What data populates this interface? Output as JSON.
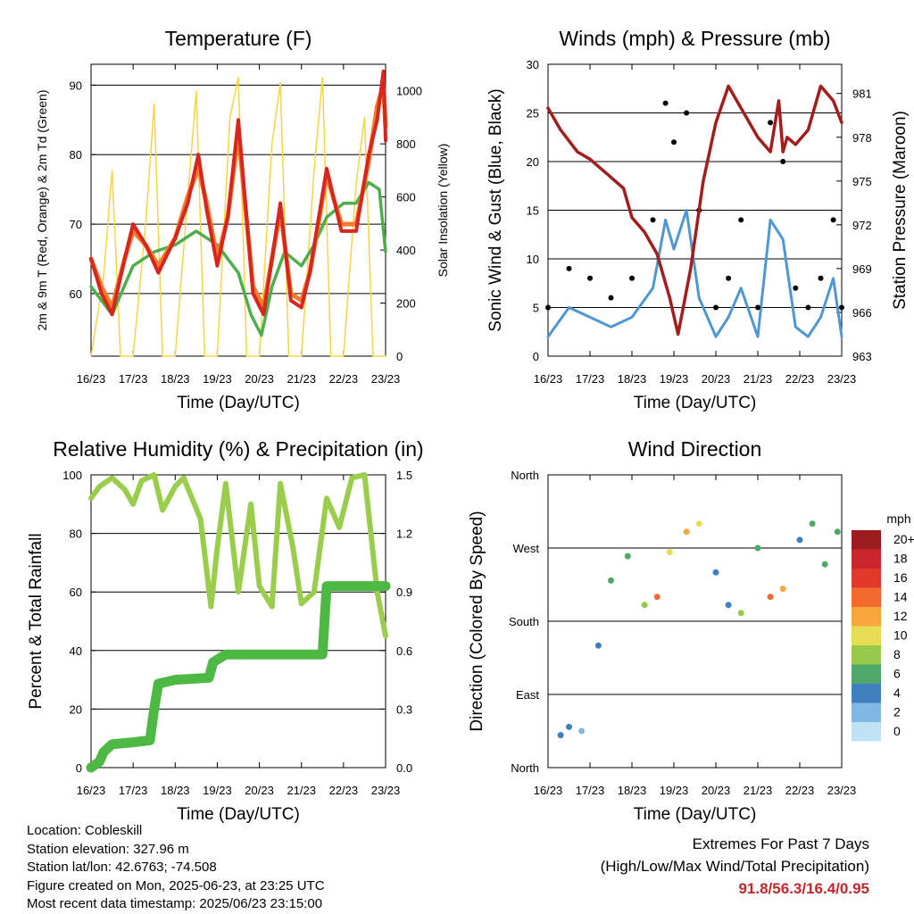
{
  "chart_data": [
    {
      "type": "line",
      "title": "Temperature (F)",
      "xlabel": "Time (Day/UTC)",
      "ylabel": "2m & 9m T (Red, Orange) & 2m Td (Green)",
      "ylabel_right": "Solar Insolation (Yellow)",
      "x_ticks": [
        "16/23",
        "17/23",
        "18/23",
        "19/23",
        "20/23",
        "21/23",
        "22/23",
        "23/23"
      ],
      "ylim": [
        51,
        93
      ],
      "y_ticks": [
        60,
        70,
        80,
        90
      ],
      "ylim_right": [
        0,
        1100
      ],
      "y_ticks_right": [
        0,
        200,
        400,
        600,
        800,
        1000
      ],
      "grid": "horizontal",
      "colors": {
        "temp_2m": "#d7261e",
        "temp_9m": "#f47b2a",
        "dewpoint_2m": "#4daf4a",
        "solar": "#f5d547"
      },
      "series": [
        {
          "key": "temp_2m",
          "x": [
            0,
            0.25,
            0.5,
            0.8,
            1,
            1.3,
            1.6,
            2,
            2.3,
            2.55,
            2.75,
            3,
            3.25,
            3.5,
            3.85,
            4.1,
            4.5,
            4.75,
            5,
            5.2,
            5.6,
            5.95,
            6.3,
            6.6,
            6.8,
            6.95,
            7
          ],
          "y": [
            65,
            60,
            57,
            65,
            70,
            67,
            63,
            68,
            73,
            80,
            72,
            64,
            71,
            85,
            60,
            57,
            73,
            59,
            58,
            63,
            78,
            69,
            69,
            80,
            85,
            92,
            82
          ]
        },
        {
          "key": "temp_9m",
          "x": [
            0,
            0.25,
            0.5,
            0.8,
            1,
            1.3,
            1.6,
            2,
            2.3,
            2.55,
            2.75,
            3,
            3.25,
            3.5,
            3.85,
            4.1,
            4.5,
            4.75,
            5,
            5.2,
            5.6,
            5.95,
            6.3,
            6.6,
            6.8,
            6.95,
            7
          ],
          "y": [
            65,
            61,
            58,
            65,
            69,
            67,
            64,
            68,
            74,
            78,
            73,
            65,
            71,
            83,
            61,
            58,
            72,
            60,
            59,
            63,
            77,
            70,
            70,
            79,
            87,
            90,
            84
          ]
        },
        {
          "key": "dewpoint_2m",
          "x": [
            0,
            0.5,
            1,
            1.5,
            2,
            2.5,
            3,
            3.5,
            3.8,
            4.05,
            4.3,
            4.6,
            5,
            5.3,
            5.6,
            6,
            6.3,
            6.6,
            6.85,
            7
          ],
          "y": [
            61,
            57,
            64,
            66,
            67,
            69,
            67,
            63,
            57,
            54,
            61,
            66,
            64,
            67,
            71,
            73,
            73,
            76,
            75,
            66
          ]
        },
        {
          "key": "solar",
          "x": [
            0,
            0.3,
            0.5,
            0.7,
            1,
            1.3,
            1.5,
            1.7,
            2,
            2.3,
            2.5,
            2.7,
            3,
            3.3,
            3.5,
            3.7,
            4,
            4.3,
            4.5,
            4.7,
            5,
            5.3,
            5.5,
            5.7,
            6,
            6.3,
            6.5,
            6.7,
            7
          ],
          "y": [
            0,
            300,
            700,
            0,
            0,
            500,
            950,
            0,
            0,
            600,
            1000,
            0,
            0,
            900,
            1050,
            0,
            0,
            800,
            1030,
            0,
            0,
            700,
            1050,
            0,
            0,
            650,
            900,
            0,
            0
          ]
        }
      ]
    },
    {
      "type": "line",
      "title": "Winds (mph) & Pressure (mb)",
      "xlabel": "Time (Day/UTC)",
      "ylabel": "Sonic Wind & Gust (Blue, Black)",
      "ylabel_right": "Station Pressure (Maroon)",
      "x_ticks": [
        "16/23",
        "17/23",
        "18/23",
        "19/23",
        "20/23",
        "21/23",
        "22/23",
        "23/23"
      ],
      "ylim": [
        0,
        30
      ],
      "y_ticks": [
        0,
        5,
        10,
        15,
        20,
        25,
        30
      ],
      "ylim_right": [
        963,
        983
      ],
      "y_ticks_right": [
        963,
        966,
        969,
        972,
        975,
        978,
        981
      ],
      "grid": "horizontal",
      "colors": {
        "wind": "#4f97d3",
        "gust": "#000000",
        "pressure": "#a31d1d"
      },
      "series": [
        {
          "key": "wind",
          "x": [
            0,
            0.5,
            1,
            1.5,
            2,
            2.5,
            2.8,
            3,
            3.3,
            3.6,
            4,
            4.3,
            4.6,
            5,
            5.3,
            5.6,
            5.9,
            6.2,
            6.5,
            6.8,
            7
          ],
          "y": [
            2,
            5,
            4,
            3,
            4,
            7,
            14,
            11,
            15,
            6,
            2,
            4,
            7,
            2,
            14,
            12,
            3,
            2,
            4,
            8,
            2
          ]
        },
        {
          "key": "gust",
          "x": [
            0,
            0.5,
            1,
            1.5,
            2,
            2.5,
            2.8,
            3,
            3.3,
            3.6,
            4,
            4.3,
            4.6,
            5,
            5.3,
            5.6,
            5.9,
            6.2,
            6.5,
            6.8,
            7
          ],
          "y": [
            5,
            9,
            8,
            6,
            8,
            14,
            26,
            22,
            25,
            15,
            5,
            8,
            14,
            5,
            24,
            20,
            7,
            5,
            8,
            14,
            5
          ]
        },
        {
          "key": "pressure",
          "x": [
            0,
            0.3,
            0.7,
            1,
            1.4,
            1.8,
            2,
            2.3,
            2.6,
            2.9,
            3.1,
            3.4,
            3.7,
            4,
            4.3,
            4.6,
            4.8,
            5,
            5.3,
            5.5,
            5.6,
            5.7,
            5.9,
            6.2,
            6.5,
            6.8,
            7
          ],
          "y": [
            980,
            978.5,
            977,
            976.5,
            975.5,
            974.5,
            972.5,
            971.5,
            970,
            967,
            964.5,
            969,
            975,
            979,
            981.5,
            980,
            979,
            978,
            977,
            980.5,
            977,
            978,
            977.5,
            978.5,
            981.5,
            980.5,
            979
          ]
        }
      ]
    },
    {
      "type": "line",
      "title": "Relative Humidity (%) & Precipitation (in)",
      "xlabel": "Time (Day/UTC)",
      "ylabel": "Percent & Total Rainfall",
      "x_ticks": [
        "16/23",
        "17/23",
        "18/23",
        "19/23",
        "20/23",
        "21/23",
        "22/23",
        "23/23"
      ],
      "ylim": [
        0,
        100
      ],
      "y_ticks": [
        0,
        20,
        40,
        60,
        80,
        100
      ],
      "ylim_right": [
        0,
        1.5
      ],
      "y_ticks_right": [
        "0.0",
        "0.3",
        "0.6",
        "0.9",
        "1.2",
        "1.5"
      ],
      "grid": "horizontal",
      "colors": {
        "rh": "#9acd4c",
        "precip": "#4db843"
      },
      "series": [
        {
          "key": "rh",
          "x": [
            0,
            0.2,
            0.5,
            0.8,
            1,
            1.2,
            1.5,
            1.7,
            2,
            2.2,
            2.6,
            2.85,
            3,
            3.2,
            3.5,
            3.8,
            4,
            4.3,
            4.5,
            4.8,
            5,
            5.3,
            5.6,
            5.9,
            6.2,
            6.5,
            6.8,
            7
          ],
          "y": [
            92,
            96,
            99,
            95,
            90,
            98,
            100,
            88,
            96,
            99,
            85,
            55,
            75,
            97,
            60,
            90,
            62,
            55,
            97,
            75,
            56,
            60,
            92,
            82,
            99,
            100,
            60,
            45
          ]
        },
        {
          "key": "precip",
          "x": [
            0,
            0.2,
            0.3,
            0.5,
            1,
            1.4,
            1.5,
            1.6,
            2,
            2.8,
            2.9,
            3.2,
            5.5,
            5.6,
            7
          ],
          "y": [
            0,
            0.03,
            0.08,
            0.12,
            0.13,
            0.14,
            0.3,
            0.43,
            0.45,
            0.46,
            0.54,
            0.58,
            0.58,
            0.93,
            0.93
          ]
        }
      ]
    },
    {
      "type": "scatter",
      "title": "Wind Direction",
      "xlabel": "Time (Day/UTC)",
      "ylabel": "Direction (Colored By Speed)",
      "x_ticks": [
        "16/23",
        "17/23",
        "18/23",
        "19/23",
        "20/23",
        "21/23",
        "22/23",
        "23/23"
      ],
      "y_ticks": [
        "North",
        "East",
        "South",
        "West",
        "North"
      ],
      "ylim": [
        0,
        360
      ],
      "grid": "horizontal",
      "legend_title": "mph",
      "legend_labels": [
        "20+",
        "18",
        "16",
        "14",
        "12",
        "10",
        "8",
        "6",
        "4",
        "2",
        "0"
      ],
      "legend_colors": [
        "#9b1b1e",
        "#c8262a",
        "#e0392b",
        "#f26a2c",
        "#f8a53e",
        "#e6dd55",
        "#98c94b",
        "#4ea868",
        "#3e7fc0",
        "#7fb8e3",
        "#bfe2f5"
      ],
      "series": [
        {
          "name": "",
          "x": [
            0.3,
            0.5,
            0.8,
            1.2,
            1.5,
            1.9,
            2.3,
            2.6,
            2.9,
            3.3,
            3.6,
            4,
            4.3,
            4.6,
            5,
            5.3,
            5.6,
            6,
            6.3,
            6.6,
            6.9
          ],
          "y": [
            40,
            50,
            45,
            150,
            230,
            260,
            200,
            210,
            265,
            290,
            300,
            240,
            200,
            190,
            270,
            210,
            220,
            280,
            300,
            250,
            290
          ],
          "speed": [
            3,
            4,
            2,
            3,
            5,
            6,
            8,
            14,
            9,
            12,
            9,
            4,
            3,
            8,
            6,
            14,
            12,
            4,
            5,
            6,
            5
          ]
        }
      ]
    }
  ],
  "info": {
    "location": "Location: Cobleskill",
    "elevation": "Station elevation: 327.96 m",
    "latlon": "Station lat/lon: 42.6763; -74.508",
    "created": "Figure created on Mon, 2025-06-23, at 23:25 UTC",
    "recent": "Most recent data timestamp: 2025/06/23 23:15:00"
  },
  "extremes": {
    "title": "Extremes For Past 7 Days",
    "subtitle": "(High/Low/Max Wind/Total Precipitation)",
    "values": "91.8/56.3/16.4/0.95"
  }
}
